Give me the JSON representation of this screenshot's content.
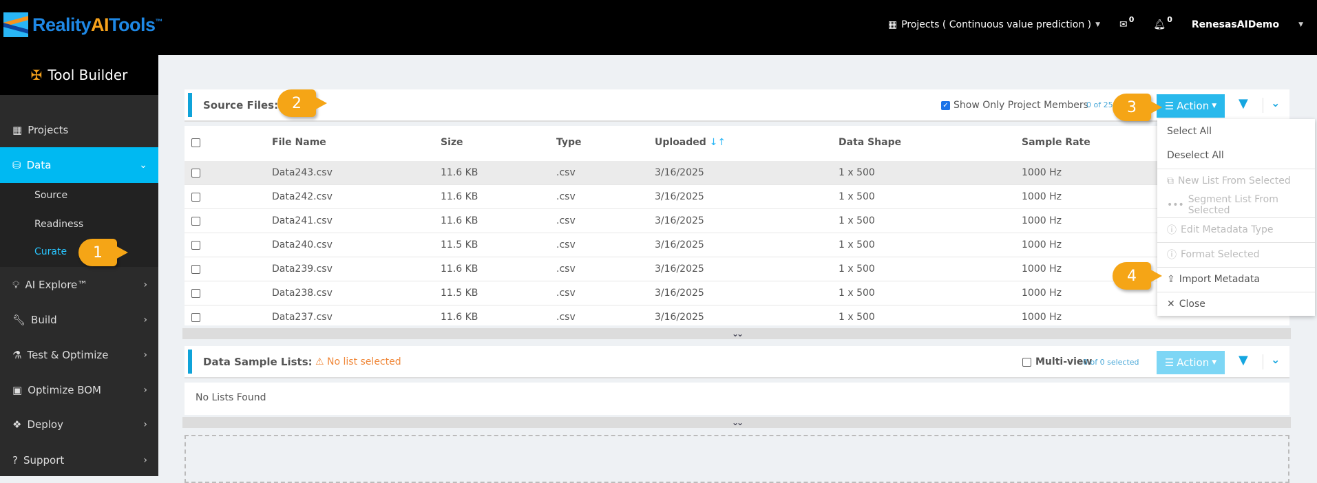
{
  "header": {
    "logo": {
      "part1": "Reality",
      "part2": "AI",
      "part3": "Tools",
      "tm": "™"
    },
    "project_label": "Projects ( Continuous value prediction )",
    "mail_count": "0",
    "notif_count": "0",
    "user": "RenesasAIDemo"
  },
  "sidebar": {
    "title": "Tool Builder",
    "items": [
      {
        "label": "Projects",
        "icon": "grid-icon"
      },
      {
        "label": "Data",
        "icon": "database-icon"
      },
      {
        "label": "AI Explore™",
        "icon": "lightbulb-icon"
      },
      {
        "label": "Build",
        "icon": "wrench-icon"
      },
      {
        "label": "Test & Optimize",
        "icon": "flask-icon"
      },
      {
        "label": "Optimize BOM",
        "icon": "chip-icon"
      },
      {
        "label": "Deploy",
        "icon": "cubes-icon"
      },
      {
        "label": "Support",
        "icon": "question-icon"
      }
    ],
    "sub_items": [
      {
        "label": "Source"
      },
      {
        "label": "Readiness"
      },
      {
        "label": "Curate"
      }
    ]
  },
  "source_files": {
    "title": "Source Files:",
    "show_members": "Show Only Project Members",
    "count": "0 of 250",
    "action": "Action",
    "columns": [
      "File Name",
      "Size",
      "Type",
      "Uploaded",
      "Data Shape",
      "Sample Rate"
    ],
    "rows": [
      [
        "Data243.csv",
        "11.6 KB",
        ".csv",
        "3/16/2025",
        "1 x 500",
        "1000 Hz"
      ],
      [
        "Data242.csv",
        "11.6 KB",
        ".csv",
        "3/16/2025",
        "1 x 500",
        "1000 Hz"
      ],
      [
        "Data241.csv",
        "11.6 KB",
        ".csv",
        "3/16/2025",
        "1 x 500",
        "1000 Hz"
      ],
      [
        "Data240.csv",
        "11.5 KB",
        ".csv",
        "3/16/2025",
        "1 x 500",
        "1000 Hz"
      ],
      [
        "Data239.csv",
        "11.6 KB",
        ".csv",
        "3/16/2025",
        "1 x 500",
        "1000 Hz"
      ],
      [
        "Data238.csv",
        "11.5 KB",
        ".csv",
        "3/16/2025",
        "1 x 500",
        "1000 Hz"
      ],
      [
        "Data237.csv",
        "11.6 KB",
        ".csv",
        "3/16/2025",
        "1 x 500",
        "1000 Hz"
      ]
    ]
  },
  "action_menu": [
    {
      "label": "Select All",
      "enabled": true
    },
    {
      "label": "Deselect All",
      "enabled": true
    },
    {
      "label": "New List From Selected",
      "enabled": false,
      "icon": "copy-icon"
    },
    {
      "label": "Segment List From Selected",
      "enabled": false,
      "icon": "ellipsis-icon"
    },
    {
      "label": "Edit Metadata Type",
      "enabled": false,
      "icon": "info-icon"
    },
    {
      "label": "Format Selected",
      "enabled": false,
      "icon": "info-icon"
    },
    {
      "label": "Import Metadata",
      "enabled": true,
      "icon": "upload-icon"
    },
    {
      "label": "Close",
      "enabled": true,
      "icon": "close-icon"
    }
  ],
  "sample_lists": {
    "title": "Data Sample Lists:",
    "warning": "No list selected",
    "multiview": "Multi-view",
    "count": "0 of 0 selected",
    "action": "Action",
    "empty": "No Lists Found"
  },
  "callouts": [
    "1",
    "2",
    "3",
    "4"
  ],
  "colors": {
    "accent": "#00b9f2",
    "callout": "#f5a516",
    "warning": "#f0883a"
  }
}
